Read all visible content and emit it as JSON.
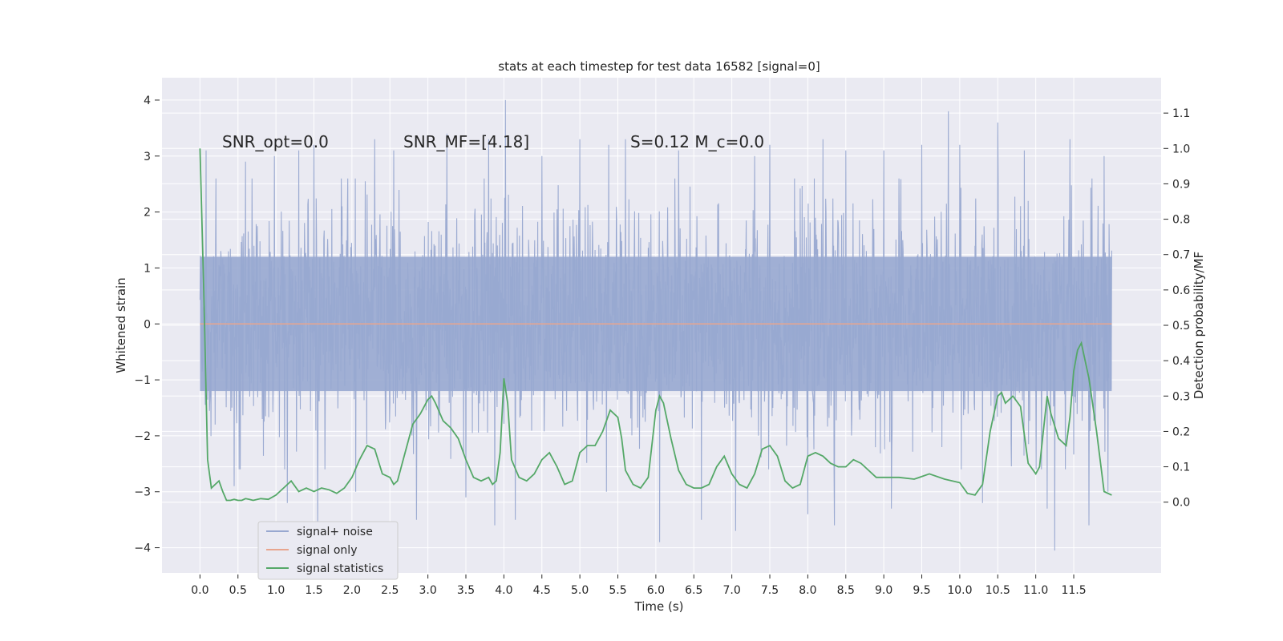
{
  "chart_data": {
    "type": "line",
    "title": "stats at each timestep for test data 16582 [signal=0]",
    "xlabel": "Time (s)",
    "ylabel_left": "Whitened strain",
    "ylabel_right": "Detection probability/MF",
    "xlim": [
      -0.5,
      12.65
    ],
    "ylim_left": [
      -4.45,
      4.4
    ],
    "ylim_right": [
      -0.2,
      1.2
    ],
    "grid": true,
    "x_ticks": [
      0.0,
      0.5,
      1.0,
      1.5,
      2.0,
      2.5,
      3.0,
      3.5,
      4.0,
      4.5,
      5.0,
      5.5,
      6.0,
      6.5,
      7.0,
      7.5,
      8.0,
      8.5,
      9.0,
      9.5,
      10.0,
      10.5,
      11.0,
      11.5
    ],
    "x_tick_labels": [
      "0.0",
      "0.5",
      "1.0",
      "1.5",
      "2.0",
      "2.5",
      "3.0",
      "3.5",
      "4.0",
      "4.5",
      "5.0",
      "5.5",
      "6.0",
      "6.5",
      "7.0",
      "7.5",
      "8.0",
      "8.5",
      "9.0",
      "9.5",
      "10.0",
      "10.5",
      "11.0",
      "11.5"
    ],
    "y_left_ticks": [
      -4,
      -3,
      -2,
      -1,
      0,
      1,
      2,
      3,
      4
    ],
    "y_left_tick_labels": [
      "−4",
      "−3",
      "−2",
      "−1",
      "0",
      "1",
      "2",
      "3",
      "4"
    ],
    "y_right_ticks": [
      0.0,
      0.1,
      0.2,
      0.3,
      0.4,
      0.5,
      0.6,
      0.7,
      0.8,
      0.9,
      1.0,
      1.1
    ],
    "y_right_tick_labels": [
      "0.0",
      "0.1",
      "0.2",
      "0.3",
      "0.4",
      "0.5",
      "0.6",
      "0.7",
      "0.8",
      "0.9",
      "1.0",
      "1.1"
    ],
    "annotations": [
      {
        "id": "snr-opt",
        "text": "SNR_opt=0.0",
        "x": 0.2,
        "y": 3.2
      },
      {
        "id": "snr-mf",
        "text": "SNR_MF=[4.18]",
        "x": 2.6,
        "y": 3.2
      },
      {
        "id": "s-mc",
        "text": "S=0.12   M_c=0.0",
        "x": 5.6,
        "y": 3.2
      }
    ],
    "legend": {
      "position": "lower-left",
      "entries": [
        {
          "label": "signal+ noise",
          "color": "#98a8d0"
        },
        {
          "label": "signal only",
          "color": "#e8a58e"
        },
        {
          "label": "signal statistics",
          "color": "#55a868"
        }
      ]
    },
    "series": [
      {
        "name": "signal+ noise",
        "axis": "left",
        "color": "#98a8d0",
        "style": "whitened noise strain, sampled 0.0–12.0 s, mostly within ±2, peaks near ±4",
        "x_range": [
          0.0,
          12.0
        ],
        "band_core": [
          -1.2,
          1.2
        ],
        "band_typical": [
          -2.0,
          2.0
        ],
        "peaks": [
          {
            "x": 0.08,
            "y": 3.1
          },
          {
            "x": 0.2,
            "y": -1.8
          },
          {
            "x": 0.45,
            "y": -2.9
          },
          {
            "x": 0.6,
            "y": 2.9
          },
          {
            "x": 0.98,
            "y": 3.0
          },
          {
            "x": 1.15,
            "y": -3.2
          },
          {
            "x": 1.3,
            "y": 3.1
          },
          {
            "x": 1.5,
            "y": 3.2
          },
          {
            "x": 1.55,
            "y": -3.7
          },
          {
            "x": 2.05,
            "y": -3.0
          },
          {
            "x": 2.3,
            "y": 3.3
          },
          {
            "x": 2.55,
            "y": 3.1
          },
          {
            "x": 2.85,
            "y": -3.5
          },
          {
            "x": 3.25,
            "y": 3.4
          },
          {
            "x": 3.5,
            "y": -3.1
          },
          {
            "x": 3.8,
            "y": 3.3
          },
          {
            "x": 3.88,
            "y": -3.6
          },
          {
            "x": 4.02,
            "y": 4.0
          },
          {
            "x": 4.15,
            "y": -3.5
          },
          {
            "x": 4.5,
            "y": 3.0
          },
          {
            "x": 5.0,
            "y": 3.3
          },
          {
            "x": 5.38,
            "y": 3.2
          },
          {
            "x": 5.35,
            "y": -3.0
          },
          {
            "x": 5.6,
            "y": 3.3
          },
          {
            "x": 6.05,
            "y": -3.9
          },
          {
            "x": 6.3,
            "y": 3.1
          },
          {
            "x": 6.6,
            "y": 3.4
          },
          {
            "x": 6.6,
            "y": -3.5
          },
          {
            "x": 7.05,
            "y": -3.7
          },
          {
            "x": 7.3,
            "y": 3.0
          },
          {
            "x": 7.5,
            "y": 3.2
          },
          {
            "x": 8.0,
            "y": -3.4
          },
          {
            "x": 8.2,
            "y": 3.3
          },
          {
            "x": 8.35,
            "y": -3.6
          },
          {
            "x": 8.5,
            "y": 3.1
          },
          {
            "x": 9.0,
            "y": 3.1
          },
          {
            "x": 9.1,
            "y": -3.3
          },
          {
            "x": 9.5,
            "y": 3.2
          },
          {
            "x": 9.85,
            "y": 3.8
          },
          {
            "x": 10.0,
            "y": 3.2
          },
          {
            "x": 10.3,
            "y": -3.2
          },
          {
            "x": 10.5,
            "y": 3.6
          },
          {
            "x": 10.85,
            "y": 3.1
          },
          {
            "x": 11.15,
            "y": -3.3
          },
          {
            "x": 11.25,
            "y": -4.05
          },
          {
            "x": 11.45,
            "y": 3.3
          },
          {
            "x": 11.7,
            "y": -3.6
          },
          {
            "x": 11.9,
            "y": 3.0
          },
          {
            "x": 11.95,
            "y": -3.0
          }
        ]
      },
      {
        "name": "signal only",
        "axis": "left",
        "color": "#e8a58e",
        "x": [
          0.0,
          12.0
        ],
        "y": [
          0.0,
          0.0
        ]
      },
      {
        "name": "signal statistics",
        "axis": "right",
        "color": "#55a868",
        "x": [
          0.0,
          0.05,
          0.1,
          0.15,
          0.2,
          0.25,
          0.3,
          0.35,
          0.4,
          0.45,
          0.5,
          0.55,
          0.6,
          0.65,
          0.7,
          0.8,
          0.9,
          1.0,
          1.1,
          1.2,
          1.3,
          1.4,
          1.5,
          1.6,
          1.7,
          1.8,
          1.9,
          2.0,
          2.1,
          2.2,
          2.3,
          2.4,
          2.5,
          2.55,
          2.6,
          2.7,
          2.8,
          2.9,
          3.0,
          3.05,
          3.1,
          3.2,
          3.3,
          3.4,
          3.5,
          3.6,
          3.7,
          3.8,
          3.85,
          3.9,
          3.95,
          4.0,
          4.05,
          4.1,
          4.2,
          4.3,
          4.4,
          4.5,
          4.6,
          4.7,
          4.8,
          4.9,
          5.0,
          5.1,
          5.2,
          5.3,
          5.4,
          5.5,
          5.55,
          5.6,
          5.7,
          5.8,
          5.9,
          6.0,
          6.05,
          6.1,
          6.2,
          6.3,
          6.4,
          6.5,
          6.6,
          6.7,
          6.8,
          6.9,
          7.0,
          7.1,
          7.2,
          7.3,
          7.4,
          7.5,
          7.6,
          7.7,
          7.8,
          7.9,
          8.0,
          8.1,
          8.2,
          8.3,
          8.4,
          8.5,
          8.6,
          8.7,
          8.8,
          8.9,
          9.0,
          9.2,
          9.4,
          9.6,
          9.8,
          10.0,
          10.1,
          10.2,
          10.3,
          10.4,
          10.5,
          10.55,
          10.6,
          10.7,
          10.8,
          10.9,
          11.0,
          11.05,
          11.1,
          11.15,
          11.2,
          11.3,
          11.4,
          11.45,
          11.5,
          11.55,
          11.6,
          11.7,
          11.8,
          11.9,
          12.0
        ],
        "y": [
          1.0,
          0.6,
          0.12,
          0.04,
          0.05,
          0.06,
          0.03,
          0.005,
          0.005,
          0.008,
          0.005,
          0.005,
          0.01,
          0.008,
          0.005,
          0.01,
          0.008,
          0.02,
          0.04,
          0.06,
          0.03,
          0.04,
          0.03,
          0.04,
          0.035,
          0.025,
          0.04,
          0.07,
          0.12,
          0.16,
          0.15,
          0.08,
          0.07,
          0.05,
          0.06,
          0.14,
          0.22,
          0.25,
          0.29,
          0.3,
          0.28,
          0.23,
          0.21,
          0.18,
          0.12,
          0.07,
          0.06,
          0.07,
          0.05,
          0.06,
          0.14,
          0.35,
          0.28,
          0.12,
          0.07,
          0.06,
          0.08,
          0.12,
          0.14,
          0.1,
          0.05,
          0.06,
          0.14,
          0.16,
          0.16,
          0.2,
          0.26,
          0.24,
          0.18,
          0.09,
          0.05,
          0.04,
          0.07,
          0.26,
          0.3,
          0.28,
          0.18,
          0.09,
          0.05,
          0.04,
          0.04,
          0.05,
          0.1,
          0.13,
          0.08,
          0.05,
          0.04,
          0.08,
          0.15,
          0.16,
          0.13,
          0.06,
          0.04,
          0.05,
          0.13,
          0.14,
          0.13,
          0.11,
          0.1,
          0.1,
          0.12,
          0.11,
          0.09,
          0.07,
          0.07,
          0.07,
          0.065,
          0.08,
          0.065,
          0.055,
          0.025,
          0.02,
          0.05,
          0.2,
          0.3,
          0.31,
          0.28,
          0.3,
          0.27,
          0.11,
          0.08,
          0.1,
          0.2,
          0.3,
          0.25,
          0.18,
          0.16,
          0.24,
          0.37,
          0.43,
          0.45,
          0.35,
          0.2,
          0.03,
          0.02
        ]
      }
    ]
  }
}
